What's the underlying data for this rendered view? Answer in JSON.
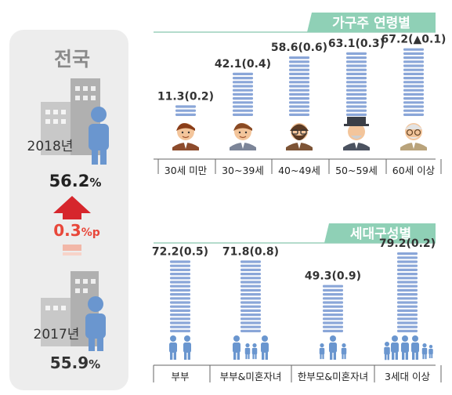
{
  "summary": {
    "region": "전국",
    "year_2018": "2018년",
    "value_2018": "56.2",
    "value_2018_unit": "%",
    "change": "0.3",
    "change_unit": "%p",
    "year_2017": "2017년",
    "value_2017": "55.9",
    "value_2017_unit": "%"
  },
  "colors": {
    "panel_bg": "#ededed",
    "building": "#b9b9b9",
    "person": "#6a96cf",
    "bar": "#8aa6d8",
    "header_bg": "#8fd0b6",
    "header_tab": "#5fb99a",
    "arrow_up": "#d6262c",
    "change_text": "#e8473a",
    "line": "#666666"
  },
  "chart_data": [
    {
      "type": "bar",
      "title": "가구주 연령별",
      "categories": [
        "30세 미만",
        "30~39세",
        "40~49세",
        "50~59세",
        "60세 이상"
      ],
      "values": [
        11.3,
        42.1,
        58.6,
        63.1,
        67.2
      ],
      "labels": [
        "11.3(0.2)",
        "42.1(0.4)",
        "58.6(0.6)",
        "63.1(0.3)",
        "67.2(▲0.1)"
      ],
      "icons": [
        "young-man-icon",
        "man-icon",
        "bearded-man-icon",
        "old-man-hat-icon",
        "elderly-man-icon"
      ]
    },
    {
      "type": "bar",
      "title": "세대구성별",
      "categories": [
        "부부",
        "부부&미혼자녀",
        "한부모&미혼자녀",
        "3세대 이상"
      ],
      "values": [
        72.2,
        71.8,
        49.3,
        79.2
      ],
      "labels": [
        "72.2(0.5)",
        "71.8(0.8)",
        "49.3(0.9)",
        "79.2(0.2)"
      ],
      "icons": [
        "couple-icon",
        "couple-children-icon",
        "single-parent-icon",
        "three-generation-icon"
      ]
    }
  ]
}
